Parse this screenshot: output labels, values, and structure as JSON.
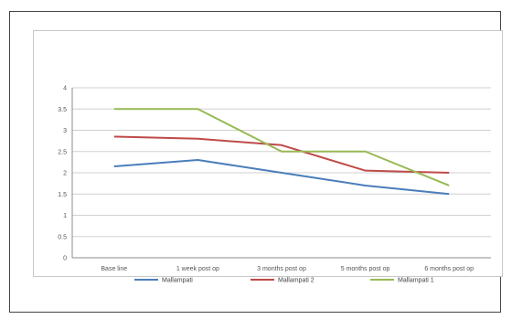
{
  "chart_data": {
    "type": "line",
    "categories": [
      "Base line",
      "1 week post op",
      "3 months post op",
      "5 months post op",
      "6 months post op"
    ],
    "series": [
      {
        "name": "Mallampati",
        "color": "#4a7ebb",
        "values": [
          2.15,
          2.3,
          2.0,
          1.7,
          1.5
        ]
      },
      {
        "name": "Mallampati 2",
        "color": "#be4b48",
        "values": [
          2.85,
          2.8,
          2.65,
          2.05,
          2.0
        ]
      },
      {
        "name": "Mallampati 1",
        "color": "#98b954",
        "values": [
          3.5,
          3.5,
          2.5,
          2.5,
          1.7
        ]
      }
    ],
    "yticks": [
      "0",
      "0.5",
      "1",
      "1.5",
      "2",
      "2.5",
      "3",
      "3.5",
      "4"
    ],
    "ylim": [
      0,
      4
    ],
    "grid": true,
    "legend_position": "bottom"
  }
}
